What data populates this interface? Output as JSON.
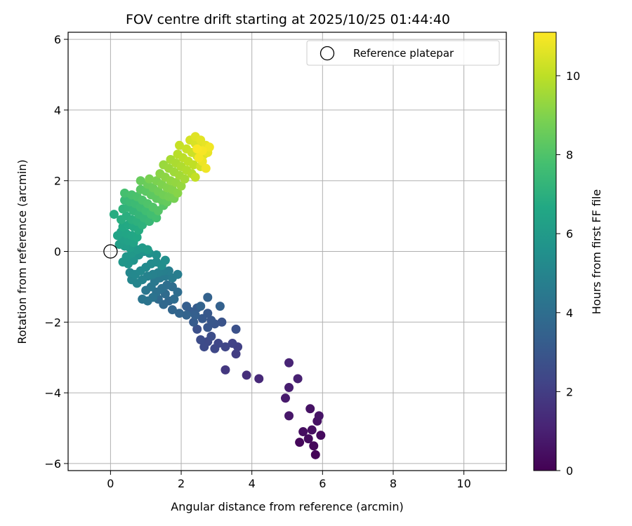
{
  "chart_data": {
    "type": "scatter",
    "title": "FOV centre drift starting at 2025/10/25 01:44:40",
    "xlabel": "Angular distance from reference (arcmin)",
    "ylabel": "Rotation from reference (arcmin)",
    "xlim": [
      -1.2,
      11.2
    ],
    "ylim": [
      -6.2,
      6.2
    ],
    "xticks": [
      0,
      2,
      4,
      6,
      8,
      10
    ],
    "yticks": [
      -6,
      -4,
      -2,
      0,
      2,
      4,
      6
    ],
    "grid": true,
    "legend": {
      "placement": "top-right",
      "label": "Reference platepar"
    },
    "reference_point": {
      "x": 0,
      "y": 0
    },
    "colorbar": {
      "label": "Hours from first FF file",
      "colormap": "viridis",
      "range": [
        0,
        11.1
      ],
      "ticks": [
        0,
        2,
        4,
        6,
        8,
        10
      ]
    },
    "points": [
      {
        "x": 5.8,
        "y": -5.75,
        "h": 0.1
      },
      {
        "x": 5.35,
        "y": -5.4,
        "h": 0.2
      },
      {
        "x": 5.75,
        "y": -5.5,
        "h": 0.25
      },
      {
        "x": 5.95,
        "y": -5.2,
        "h": 0.3
      },
      {
        "x": 5.6,
        "y": -5.3,
        "h": 0.35
      },
      {
        "x": 5.45,
        "y": -5.1,
        "h": 0.4
      },
      {
        "x": 5.7,
        "y": -5.05,
        "h": 0.45
      },
      {
        "x": 5.85,
        "y": -4.8,
        "h": 0.5
      },
      {
        "x": 5.65,
        "y": -4.45,
        "h": 0.55
      },
      {
        "x": 5.9,
        "y": -4.65,
        "h": 0.6
      },
      {
        "x": 5.05,
        "y": -4.65,
        "h": 0.7
      },
      {
        "x": 4.95,
        "y": -4.15,
        "h": 0.8
      },
      {
        "x": 5.05,
        "y": -3.85,
        "h": 0.9
      },
      {
        "x": 5.3,
        "y": -3.6,
        "h": 1.0
      },
      {
        "x": 5.05,
        "y": -3.15,
        "h": 1.1
      },
      {
        "x": 4.2,
        "y": -3.6,
        "h": 1.3
      },
      {
        "x": 3.85,
        "y": -3.5,
        "h": 1.5
      },
      {
        "x": 3.25,
        "y": -3.35,
        "h": 1.8
      },
      {
        "x": 3.55,
        "y": -2.9,
        "h": 2.0
      },
      {
        "x": 3.6,
        "y": -2.7,
        "h": 2.1
      },
      {
        "x": 3.45,
        "y": -2.6,
        "h": 2.2
      },
      {
        "x": 3.25,
        "y": -2.7,
        "h": 2.3
      },
      {
        "x": 3.05,
        "y": -2.6,
        "h": 2.35
      },
      {
        "x": 2.95,
        "y": -2.75,
        "h": 2.4
      },
      {
        "x": 2.75,
        "y": -2.55,
        "h": 2.45
      },
      {
        "x": 2.65,
        "y": -2.7,
        "h": 2.5
      },
      {
        "x": 2.55,
        "y": -2.5,
        "h": 2.55
      },
      {
        "x": 2.85,
        "y": -2.4,
        "h": 2.6
      },
      {
        "x": 2.45,
        "y": -2.2,
        "h": 2.7
      },
      {
        "x": 3.55,
        "y": -2.2,
        "h": 2.75
      },
      {
        "x": 3.15,
        "y": -2.0,
        "h": 2.85
      },
      {
        "x": 2.95,
        "y": -2.05,
        "h": 2.9
      },
      {
        "x": 2.75,
        "y": -2.15,
        "h": 2.95
      },
      {
        "x": 2.85,
        "y": -1.95,
        "h": 3.0
      },
      {
        "x": 2.75,
        "y": -1.75,
        "h": 3.05
      },
      {
        "x": 2.6,
        "y": -1.9,
        "h": 3.1
      },
      {
        "x": 2.35,
        "y": -2.0,
        "h": 3.15
      },
      {
        "x": 2.45,
        "y": -1.6,
        "h": 3.2
      },
      {
        "x": 2.25,
        "y": -1.7,
        "h": 3.25
      },
      {
        "x": 2.15,
        "y": -1.55,
        "h": 3.3
      },
      {
        "x": 2.4,
        "y": -1.8,
        "h": 3.35
      },
      {
        "x": 3.1,
        "y": -1.55,
        "h": 3.4
      },
      {
        "x": 2.75,
        "y": -1.3,
        "h": 3.45
      },
      {
        "x": 2.55,
        "y": -1.55,
        "h": 3.5
      },
      {
        "x": 2.15,
        "y": -1.8,
        "h": 3.55
      },
      {
        "x": 1.95,
        "y": -1.75,
        "h": 3.6
      },
      {
        "x": 1.75,
        "y": -1.65,
        "h": 3.65
      },
      {
        "x": 1.65,
        "y": -1.4,
        "h": 3.7
      },
      {
        "x": 1.5,
        "y": -1.5,
        "h": 3.75
      },
      {
        "x": 1.35,
        "y": -1.35,
        "h": 3.8
      },
      {
        "x": 1.55,
        "y": -1.2,
        "h": 3.85
      },
      {
        "x": 1.8,
        "y": -1.35,
        "h": 3.9
      },
      {
        "x": 1.9,
        "y": -1.15,
        "h": 3.95
      },
      {
        "x": 1.75,
        "y": -1.0,
        "h": 4.0
      },
      {
        "x": 1.6,
        "y": -0.95,
        "h": 4.05
      },
      {
        "x": 1.45,
        "y": -1.05,
        "h": 4.1
      },
      {
        "x": 1.3,
        "y": -1.15,
        "h": 4.15
      },
      {
        "x": 1.2,
        "y": -1.3,
        "h": 4.2
      },
      {
        "x": 1.05,
        "y": -1.4,
        "h": 4.25
      },
      {
        "x": 0.9,
        "y": -1.35,
        "h": 4.3
      },
      {
        "x": 1.0,
        "y": -1.1,
        "h": 4.35
      },
      {
        "x": 1.15,
        "y": -1.0,
        "h": 4.4
      },
      {
        "x": 1.25,
        "y": -0.85,
        "h": 4.45
      },
      {
        "x": 1.4,
        "y": -0.75,
        "h": 4.5
      },
      {
        "x": 1.55,
        "y": -0.7,
        "h": 4.55
      },
      {
        "x": 1.75,
        "y": -0.75,
        "h": 4.6
      },
      {
        "x": 1.9,
        "y": -0.65,
        "h": 4.65
      },
      {
        "x": 1.65,
        "y": -0.55,
        "h": 4.7
      },
      {
        "x": 1.5,
        "y": -0.55,
        "h": 4.75
      },
      {
        "x": 1.35,
        "y": -0.6,
        "h": 4.8
      },
      {
        "x": 1.2,
        "y": -0.65,
        "h": 4.85
      },
      {
        "x": 1.05,
        "y": -0.7,
        "h": 4.9
      },
      {
        "x": 0.9,
        "y": -0.8,
        "h": 4.95
      },
      {
        "x": 0.75,
        "y": -0.9,
        "h": 5.0
      },
      {
        "x": 0.6,
        "y": -0.8,
        "h": 5.05
      },
      {
        "x": 0.55,
        "y": -0.6,
        "h": 5.1
      },
      {
        "x": 0.7,
        "y": -0.65,
        "h": 5.15
      },
      {
        "x": 0.85,
        "y": -0.55,
        "h": 5.2
      },
      {
        "x": 1.0,
        "y": -0.45,
        "h": 5.25
      },
      {
        "x": 1.15,
        "y": -0.35,
        "h": 5.3
      },
      {
        "x": 1.3,
        "y": -0.3,
        "h": 5.35
      },
      {
        "x": 1.45,
        "y": -0.4,
        "h": 5.4
      },
      {
        "x": 1.55,
        "y": -0.25,
        "h": 5.45
      },
      {
        "x": 1.3,
        "y": -0.1,
        "h": 5.5
      },
      {
        "x": 1.1,
        "y": -0.05,
        "h": 5.55
      },
      {
        "x": 0.95,
        "y": 0.0,
        "h": 5.6
      },
      {
        "x": 0.8,
        "y": -0.1,
        "h": 5.65
      },
      {
        "x": 0.65,
        "y": -0.25,
        "h": 5.7
      },
      {
        "x": 0.5,
        "y": -0.35,
        "h": 5.75
      },
      {
        "x": 0.35,
        "y": -0.3,
        "h": 5.8
      },
      {
        "x": 0.45,
        "y": -0.15,
        "h": 5.85
      },
      {
        "x": 0.6,
        "y": -0.05,
        "h": 5.9
      },
      {
        "x": 0.75,
        "y": 0.05,
        "h": 5.95
      },
      {
        "x": 0.9,
        "y": 0.1,
        "h": 6.0
      },
      {
        "x": 1.05,
        "y": 0.05,
        "h": 6.05
      },
      {
        "x": 0.55,
        "y": 0.1,
        "h": 6.1
      },
      {
        "x": 0.4,
        "y": 0.15,
        "h": 6.15
      },
      {
        "x": 0.25,
        "y": 0.2,
        "h": 6.2
      },
      {
        "x": 0.35,
        "y": 0.35,
        "h": 6.25
      },
      {
        "x": 0.5,
        "y": 0.3,
        "h": 6.3
      },
      {
        "x": 0.65,
        "y": 0.25,
        "h": 6.35
      },
      {
        "x": 0.2,
        "y": 0.45,
        "h": 6.4
      },
      {
        "x": 0.3,
        "y": 0.55,
        "h": 6.45
      },
      {
        "x": 0.45,
        "y": 0.5,
        "h": 6.5
      },
      {
        "x": 0.6,
        "y": 0.45,
        "h": 6.55
      },
      {
        "x": 0.75,
        "y": 0.4,
        "h": 6.6
      },
      {
        "x": 0.35,
        "y": 0.7,
        "h": 6.65
      },
      {
        "x": 0.5,
        "y": 0.75,
        "h": 6.7
      },
      {
        "x": 0.65,
        "y": 0.7,
        "h": 6.75
      },
      {
        "x": 0.8,
        "y": 0.6,
        "h": 6.8
      },
      {
        "x": 0.1,
        "y": 1.05,
        "h": 6.85
      },
      {
        "x": 0.3,
        "y": 0.9,
        "h": 6.9
      },
      {
        "x": 0.45,
        "y": 1.0,
        "h": 6.95
      },
      {
        "x": 0.6,
        "y": 0.9,
        "h": 7.0
      },
      {
        "x": 0.75,
        "y": 0.85,
        "h": 7.05
      },
      {
        "x": 0.9,
        "y": 0.75,
        "h": 7.1
      },
      {
        "x": 0.35,
        "y": 1.2,
        "h": 7.15
      },
      {
        "x": 0.5,
        "y": 1.25,
        "h": 7.2
      },
      {
        "x": 0.65,
        "y": 1.15,
        "h": 7.25
      },
      {
        "x": 0.8,
        "y": 1.05,
        "h": 7.3
      },
      {
        "x": 0.95,
        "y": 0.95,
        "h": 7.35
      },
      {
        "x": 1.1,
        "y": 0.85,
        "h": 7.4
      },
      {
        "x": 0.4,
        "y": 1.45,
        "h": 7.45
      },
      {
        "x": 0.55,
        "y": 1.4,
        "h": 7.5
      },
      {
        "x": 0.7,
        "y": 1.35,
        "h": 7.55
      },
      {
        "x": 0.85,
        "y": 1.25,
        "h": 7.6
      },
      {
        "x": 1.0,
        "y": 1.15,
        "h": 7.65
      },
      {
        "x": 1.15,
        "y": 1.05,
        "h": 7.7
      },
      {
        "x": 1.3,
        "y": 0.95,
        "h": 7.75
      },
      {
        "x": 0.4,
        "y": 1.65,
        "h": 7.8
      },
      {
        "x": 0.6,
        "y": 1.6,
        "h": 7.85
      },
      {
        "x": 0.75,
        "y": 1.55,
        "h": 7.9
      },
      {
        "x": 0.9,
        "y": 1.45,
        "h": 7.95
      },
      {
        "x": 1.05,
        "y": 1.35,
        "h": 8.0
      },
      {
        "x": 1.2,
        "y": 1.25,
        "h": 8.05
      },
      {
        "x": 1.35,
        "y": 1.15,
        "h": 8.1
      },
      {
        "x": 1.5,
        "y": 1.3,
        "h": 8.15
      },
      {
        "x": 0.85,
        "y": 1.75,
        "h": 8.2
      },
      {
        "x": 1.0,
        "y": 1.7,
        "h": 8.25
      },
      {
        "x": 1.15,
        "y": 1.6,
        "h": 8.3
      },
      {
        "x": 1.3,
        "y": 1.5,
        "h": 8.35
      },
      {
        "x": 1.45,
        "y": 1.45,
        "h": 8.4
      },
      {
        "x": 1.6,
        "y": 1.4,
        "h": 8.45
      },
      {
        "x": 0.85,
        "y": 2.0,
        "h": 8.5
      },
      {
        "x": 1.05,
        "y": 1.9,
        "h": 8.55
      },
      {
        "x": 1.2,
        "y": 1.8,
        "h": 8.6
      },
      {
        "x": 1.35,
        "y": 1.7,
        "h": 8.65
      },
      {
        "x": 1.5,
        "y": 1.6,
        "h": 8.7
      },
      {
        "x": 1.65,
        "y": 1.55,
        "h": 8.75
      },
      {
        "x": 1.8,
        "y": 1.5,
        "h": 8.8
      },
      {
        "x": 1.1,
        "y": 2.05,
        "h": 8.85
      },
      {
        "x": 1.3,
        "y": 2.0,
        "h": 8.9
      },
      {
        "x": 1.45,
        "y": 1.9,
        "h": 8.95
      },
      {
        "x": 1.6,
        "y": 1.8,
        "h": 9.0
      },
      {
        "x": 1.75,
        "y": 1.75,
        "h": 9.05
      },
      {
        "x": 1.9,
        "y": 1.65,
        "h": 9.1
      },
      {
        "x": 1.4,
        "y": 2.2,
        "h": 9.15
      },
      {
        "x": 1.55,
        "y": 2.1,
        "h": 9.2
      },
      {
        "x": 1.7,
        "y": 2.0,
        "h": 9.25
      },
      {
        "x": 1.85,
        "y": 1.95,
        "h": 9.3
      },
      {
        "x": 2.0,
        "y": 1.85,
        "h": 9.35
      },
      {
        "x": 1.5,
        "y": 2.45,
        "h": 9.4
      },
      {
        "x": 1.65,
        "y": 2.35,
        "h": 9.45
      },
      {
        "x": 1.8,
        "y": 2.25,
        "h": 9.5
      },
      {
        "x": 1.95,
        "y": 2.15,
        "h": 9.55
      },
      {
        "x": 2.1,
        "y": 2.05,
        "h": 9.6
      },
      {
        "x": 1.7,
        "y": 2.6,
        "h": 9.65
      },
      {
        "x": 1.85,
        "y": 2.5,
        "h": 9.7
      },
      {
        "x": 2.0,
        "y": 2.4,
        "h": 9.75
      },
      {
        "x": 2.15,
        "y": 2.3,
        "h": 9.8
      },
      {
        "x": 2.3,
        "y": 2.2,
        "h": 9.85
      },
      {
        "x": 1.9,
        "y": 2.75,
        "h": 9.9
      },
      {
        "x": 2.05,
        "y": 2.65,
        "h": 9.95
      },
      {
        "x": 2.2,
        "y": 2.55,
        "h": 10.0
      },
      {
        "x": 2.35,
        "y": 2.45,
        "h": 10.05
      },
      {
        "x": 2.4,
        "y": 2.1,
        "h": 10.1
      },
      {
        "x": 1.95,
        "y": 3.0,
        "h": 10.15
      },
      {
        "x": 2.15,
        "y": 2.9,
        "h": 10.2
      },
      {
        "x": 2.3,
        "y": 2.8,
        "h": 10.25
      },
      {
        "x": 2.45,
        "y": 2.7,
        "h": 10.3
      },
      {
        "x": 2.55,
        "y": 2.4,
        "h": 10.35
      },
      {
        "x": 2.25,
        "y": 3.15,
        "h": 10.4
      },
      {
        "x": 2.4,
        "y": 3.05,
        "h": 10.45
      },
      {
        "x": 2.55,
        "y": 2.95,
        "h": 10.5
      },
      {
        "x": 2.65,
        "y": 2.75,
        "h": 10.55
      },
      {
        "x": 2.4,
        "y": 3.25,
        "h": 10.6
      },
      {
        "x": 2.55,
        "y": 3.15,
        "h": 10.65
      },
      {
        "x": 2.7,
        "y": 3.0,
        "h": 10.7
      },
      {
        "x": 2.75,
        "y": 2.8,
        "h": 10.75
      },
      {
        "x": 2.6,
        "y": 2.55,
        "h": 10.8
      },
      {
        "x": 2.7,
        "y": 2.35,
        "h": 10.85
      },
      {
        "x": 2.8,
        "y": 2.95,
        "h": 10.9
      },
      {
        "x": 2.5,
        "y": 2.65,
        "h": 10.95
      },
      {
        "x": 2.6,
        "y": 2.85,
        "h": 11.0
      },
      {
        "x": 2.45,
        "y": 2.9,
        "h": 11.05
      }
    ]
  }
}
